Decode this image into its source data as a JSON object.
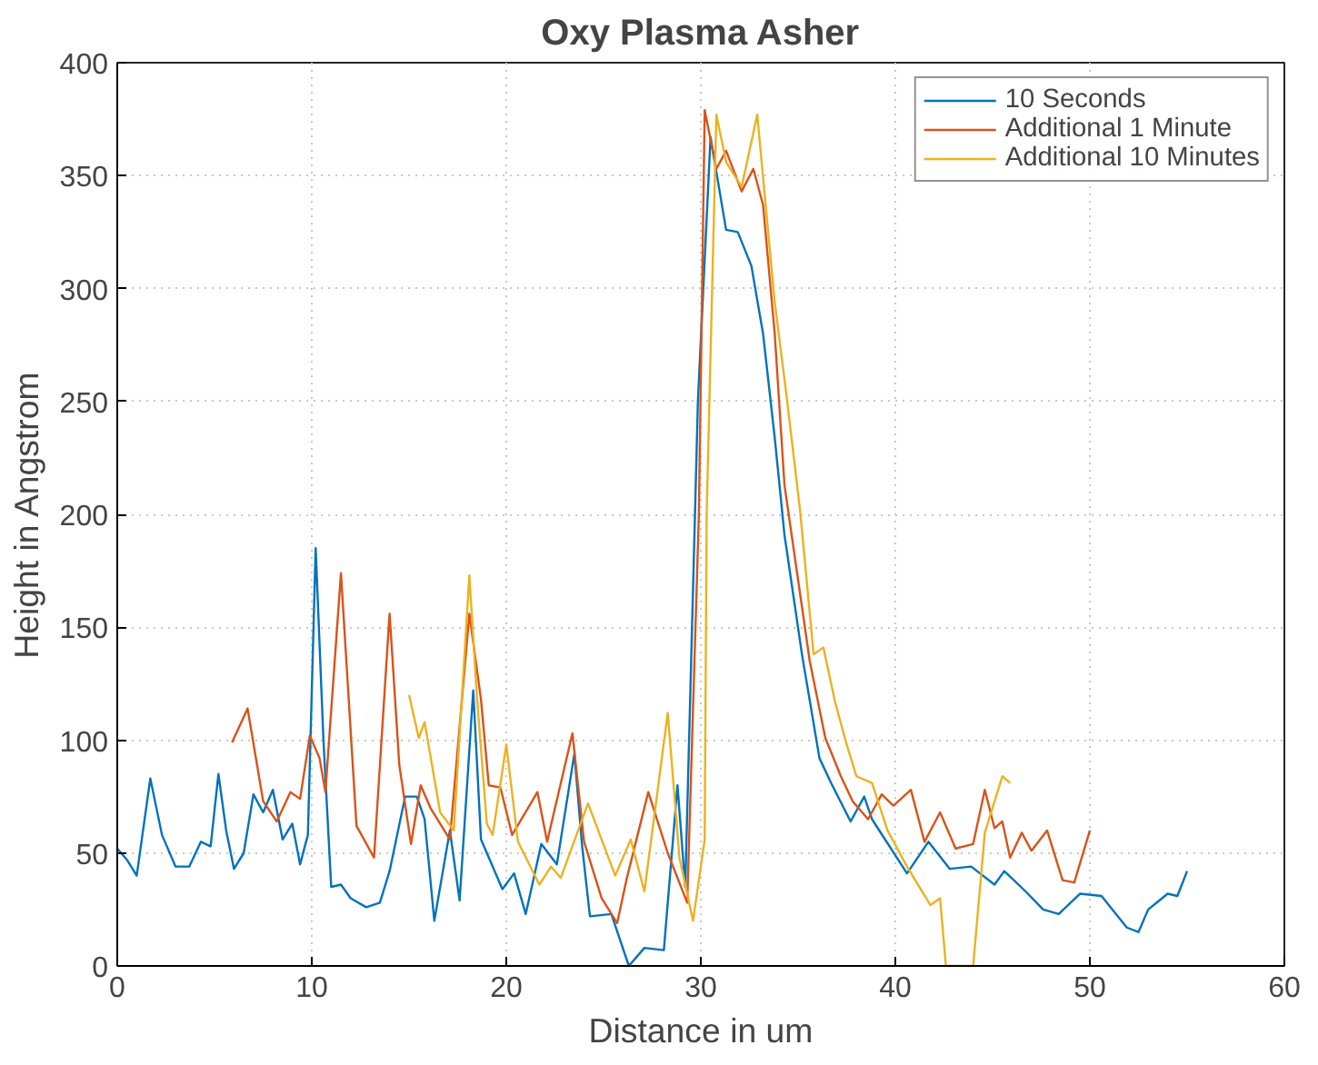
{
  "chart_data": {
    "type": "line",
    "title": "Oxy Plasma Asher",
    "xlabel": "Distance in um",
    "ylabel": "Height in Angstrom",
    "xlim": [
      0,
      60
    ],
    "ylim": [
      0,
      400
    ],
    "xticks": [
      0,
      10,
      20,
      30,
      40,
      50,
      60
    ],
    "yticks": [
      0,
      50,
      100,
      150,
      200,
      250,
      300,
      350,
      400
    ],
    "grid": true,
    "legend": "top right",
    "line_style": "solid",
    "marker": "none",
    "series": [
      {
        "name": "10 Seconds",
        "color": "#0072bd",
        "x": [
          0,
          0.5,
          1,
          1.7,
          2.3,
          3,
          3.7,
          4.3,
          4.8,
          5.2,
          5.6,
          6,
          6.5,
          7,
          7.5,
          8,
          8.5,
          9,
          9.4,
          9.8,
          10.2,
          10.6,
          11,
          11.5,
          12,
          12.8,
          13.5,
          14,
          14.8,
          15.4,
          15.8,
          16.3,
          17.1,
          17.6,
          18.3,
          18.7,
          19.8,
          20.4,
          21,
          21.8,
          22.6,
          23.5,
          23.9,
          24.3,
          25.4,
          26.3,
          27.1,
          28.1,
          28.8,
          29.2,
          29.7,
          29.85,
          30.5,
          31.3,
          31.9,
          32.6,
          33.2,
          33.8,
          34.3,
          35.2,
          36.1,
          36.7,
          37.7,
          38.4,
          38.8,
          40.6,
          41.7,
          42.8,
          43.9,
          45.1,
          45.6,
          46.7,
          47.6,
          48.4,
          49.5,
          50.6,
          51.9,
          52.5,
          53,
          54,
          54.5,
          55
        ],
        "values": [
          52,
          47,
          40,
          83,
          58,
          44,
          44,
          55,
          53,
          85,
          60,
          43,
          50,
          76,
          68,
          78,
          56,
          63,
          45,
          58,
          185,
          100,
          35,
          36,
          30,
          26,
          28,
          42,
          75,
          75,
          65,
          20,
          60,
          29,
          122,
          56,
          34,
          41,
          23,
          54,
          45,
          94,
          53,
          22,
          23,
          0,
          8,
          7,
          80,
          35,
          200,
          250,
          367,
          326,
          325,
          310,
          280,
          234,
          191,
          138,
          92,
          81,
          64,
          75,
          65,
          41,
          55,
          43,
          44,
          36,
          42,
          33,
          25,
          23,
          32,
          31,
          17,
          15,
          25,
          32,
          31,
          42
        ]
      },
      {
        "name": "Additional 1 Minute",
        "color": "#d95319",
        "x": [
          5.9,
          6.7,
          7.5,
          8.2,
          8.9,
          9.4,
          9.9,
          10.4,
          10.7,
          11.5,
          12.3,
          13.2,
          14,
          14.5,
          15.1,
          15.6,
          16.1,
          17.1,
          18.1,
          18.7,
          19.1,
          19.7,
          20.3,
          21.6,
          22.1,
          23.4,
          24,
          24.9,
          25.7,
          26.2,
          27.3,
          28.3,
          29.3,
          29.9,
          30.2,
          30.8,
          31.3,
          32.1,
          32.7,
          33.2,
          33.8,
          34.3,
          35.6,
          36.4,
          37.2,
          37.8,
          38.6,
          39.3,
          39.9,
          40.8,
          41.5,
          42.3,
          43.1,
          44,
          44.6,
          45.1,
          45.5,
          45.9,
          46.5,
          47,
          47.8,
          48.6,
          49.2,
          50
        ],
        "values": [
          99,
          114,
          73,
          64,
          77,
          74,
          102,
          92,
          77,
          174,
          62,
          48,
          156,
          89,
          54,
          80,
          70,
          56,
          156,
          118,
          80,
          79,
          58,
          77,
          55,
          103,
          55,
          30,
          19,
          39,
          77,
          50,
          28,
          200,
          379,
          353,
          361,
          343,
          353,
          337,
          280,
          213,
          135,
          101,
          84,
          73,
          65,
          76,
          71,
          78,
          55,
          68,
          52,
          54,
          78,
          61,
          64,
          48,
          59,
          51,
          60,
          38,
          37,
          60
        ]
      },
      {
        "name": "Additional 10 Minutes",
        "color": "#edb120",
        "x": [
          15,
          15.5,
          15.8,
          16.6,
          17.3,
          18.1,
          18.5,
          19,
          19.3,
          20,
          20.6,
          21.7,
          22.3,
          22.8,
          24.2,
          25.6,
          26.4,
          27.1,
          28.3,
          28.9,
          29.6,
          30.2,
          30.3,
          30.8,
          31.3,
          32.1,
          32.9,
          33.3,
          33.8,
          34.4,
          35.1,
          35.8,
          36.3,
          36.9,
          37.5,
          38,
          38.8,
          39.6,
          40.6,
          41.8,
          42.3,
          42.6,
          44,
          44.6,
          45.5,
          45.9
        ],
        "values": [
          120,
          101,
          108,
          68,
          60,
          173,
          118,
          63,
          58,
          98,
          55,
          36,
          44,
          39,
          72,
          40,
          56,
          33,
          112,
          48,
          20,
          56,
          200,
          377,
          356,
          345,
          377,
          340,
          294,
          253,
          202,
          138,
          141,
          117,
          98,
          84,
          81,
          60,
          44,
          27,
          30,
          0,
          0,
          59,
          84,
          81
        ]
      }
    ]
  }
}
